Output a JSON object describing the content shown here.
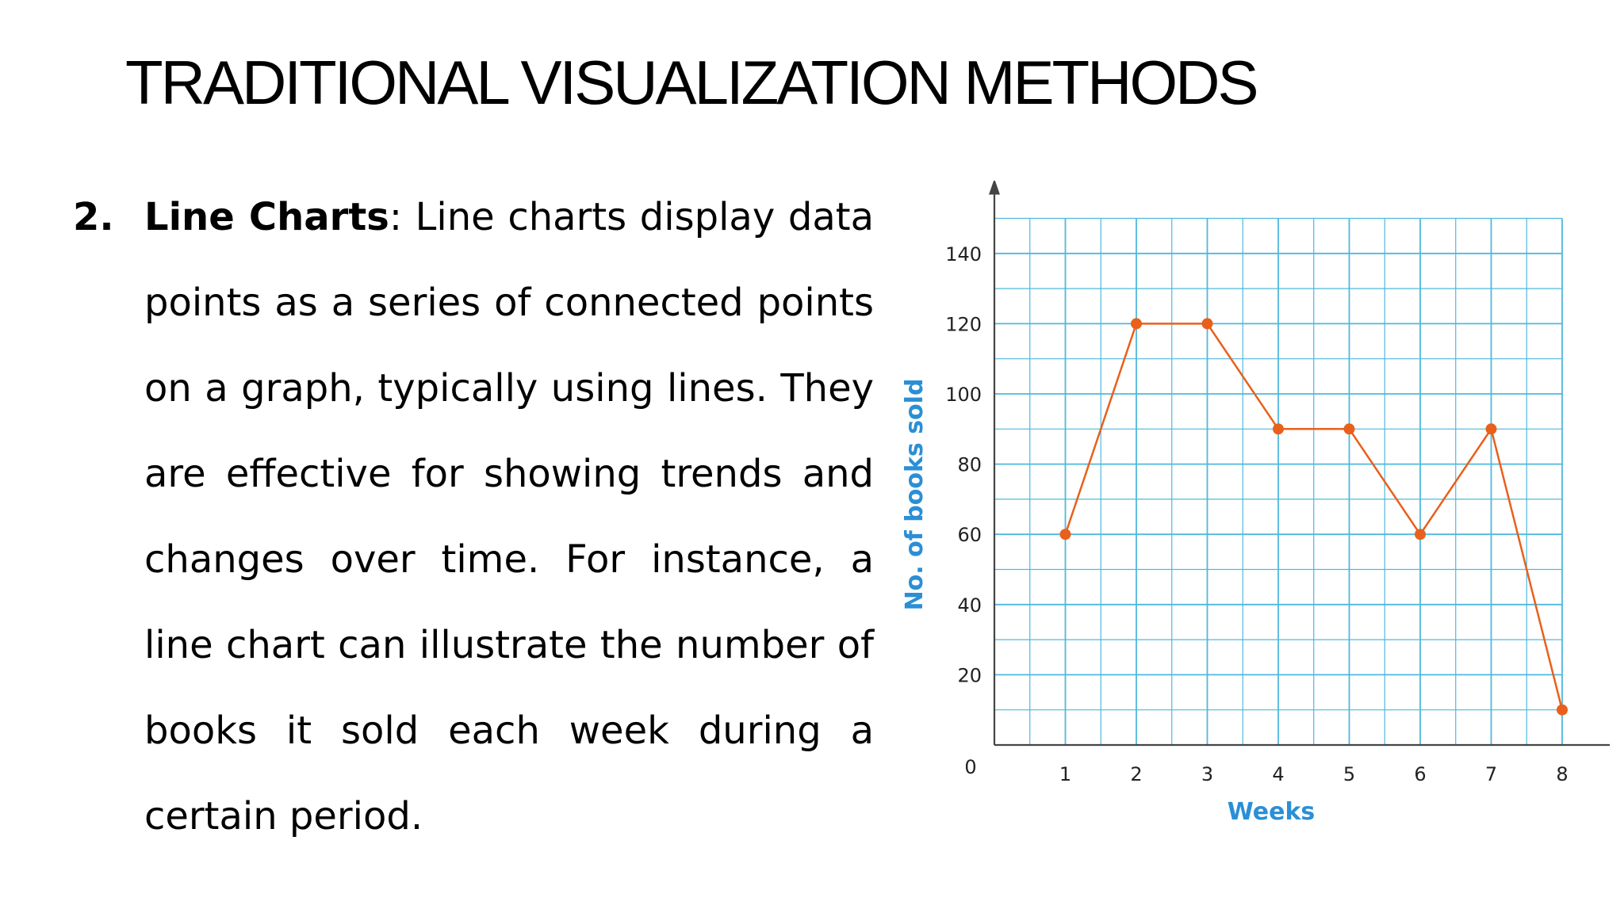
{
  "slide": {
    "title": "TRADITIONAL VISUALIZATION METHODS",
    "item_number": "2.",
    "item_term": "Line Charts",
    "item_sep": ":",
    "item_text": " Line charts display data points as a series of connected points on a graph, typically using lines. They are effective for showing trends and changes over time. For instance, a line chart can illustrate the number of books it sold each week during a certain period."
  },
  "chart_data": {
    "type": "line",
    "title": "",
    "xlabel": "Weeks",
    "ylabel": "No. of books sold",
    "x": [
      1,
      2,
      3,
      4,
      5,
      6,
      7,
      8
    ],
    "series": [
      {
        "values": [
          60,
          120,
          120,
          90,
          90,
          60,
          90,
          10
        ]
      }
    ],
    "xlim": [
      0,
      8
    ],
    "ylim": [
      0,
      150
    ],
    "yticks": [
      140,
      120,
      100,
      80,
      60,
      40,
      20
    ],
    "xticks": [
      "1",
      "2",
      "3",
      "4",
      "5",
      "6",
      "7",
      "8"
    ],
    "origin_label": "0",
    "grid": true,
    "colors": {
      "line": "#e8601c",
      "grid": "#4fb8de",
      "axis": "#444444",
      "label": "#2a8fd6"
    }
  }
}
